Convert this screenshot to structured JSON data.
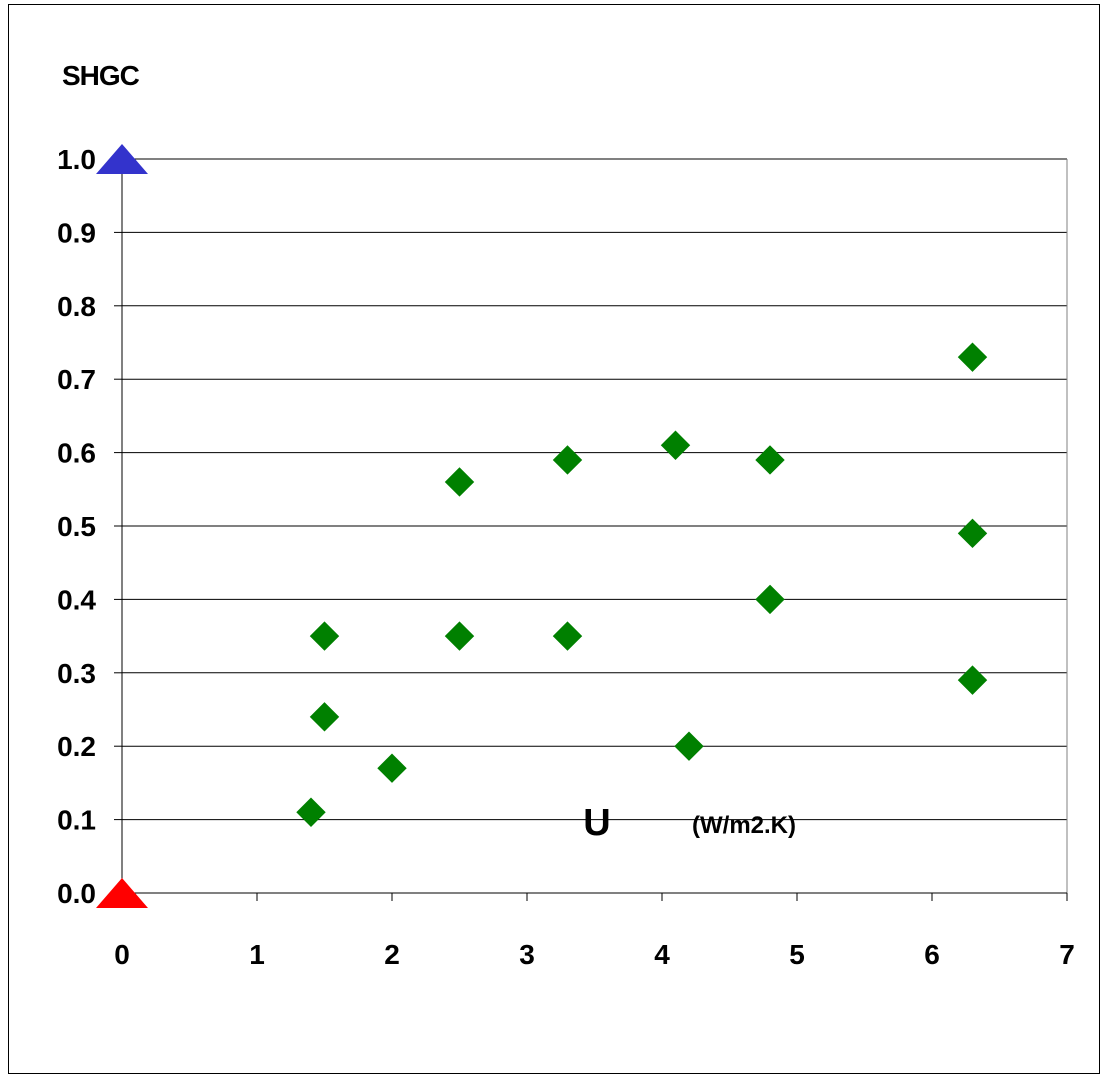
{
  "chart_data": {
    "type": "scatter",
    "title": "",
    "ylabel": "SHGC",
    "xlabel": "U",
    "xlabel_unit": "(W/m2.K)",
    "xlim": [
      0,
      7
    ],
    "ylim": [
      0.0,
      1.0
    ],
    "x_ticks": [
      0,
      1,
      2,
      3,
      4,
      5,
      6,
      7
    ],
    "x_tick_labels": [
      "0",
      "1",
      "2",
      "3",
      "4",
      "5",
      "6",
      "7"
    ],
    "y_ticks": [
      0.0,
      0.1,
      0.2,
      0.3,
      0.4,
      0.5,
      0.6,
      0.7,
      0.8,
      0.9,
      1.0
    ],
    "y_tick_labels": [
      "0.0",
      "0.1",
      "0.2",
      "0.3",
      "0.4",
      "0.5",
      "0.6",
      "0.7",
      "0.8",
      "0.9",
      "1.0"
    ],
    "grid": "horizontal",
    "legend": "none",
    "marker_color": "#008000",
    "series": [
      {
        "marker": "diamond",
        "points": [
          {
            "x": 1.4,
            "y": 0.11
          },
          {
            "x": 1.5,
            "y": 0.35
          },
          {
            "x": 1.5,
            "y": 0.24
          },
          {
            "x": 2.0,
            "y": 0.17
          },
          {
            "x": 2.5,
            "y": 0.56
          },
          {
            "x": 2.5,
            "y": 0.35
          },
          {
            "x": 3.3,
            "y": 0.59
          },
          {
            "x": 3.3,
            "y": 0.35
          },
          {
            "x": 4.1,
            "y": 0.61
          },
          {
            "x": 4.2,
            "y": 0.2
          },
          {
            "x": 4.8,
            "y": 0.59
          },
          {
            "x": 4.8,
            "y": 0.4
          },
          {
            "x": 6.3,
            "y": 0.73
          },
          {
            "x": 6.3,
            "y": 0.49
          },
          {
            "x": 6.3,
            "y": 0.29
          }
        ]
      }
    ],
    "axis_markers": [
      {
        "x": 0,
        "y": 1.0,
        "shape": "triangle",
        "color": "#3333cc"
      },
      {
        "x": 0,
        "y": 0.0,
        "shape": "triangle",
        "color": "#ff0000"
      }
    ]
  }
}
